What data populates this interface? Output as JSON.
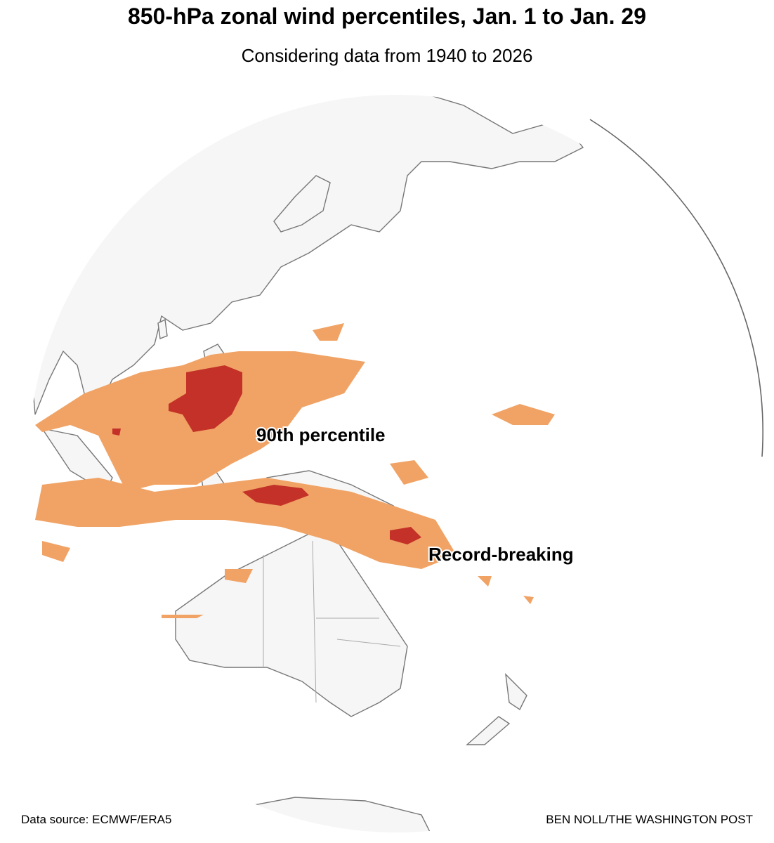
{
  "header": {
    "title": "850-hPa zonal wind percentiles, Jan. 1 to Jan. 29",
    "subtitle": "Considering data from 1940 to 2026"
  },
  "annotations": [
    {
      "label": "90th percentile"
    },
    {
      "label": "Record-breaking"
    }
  ],
  "footer": {
    "source": "Data source: ECMWF/ERA5",
    "credit": "BEN NOLL/THE WASHINGTON POST"
  }
}
